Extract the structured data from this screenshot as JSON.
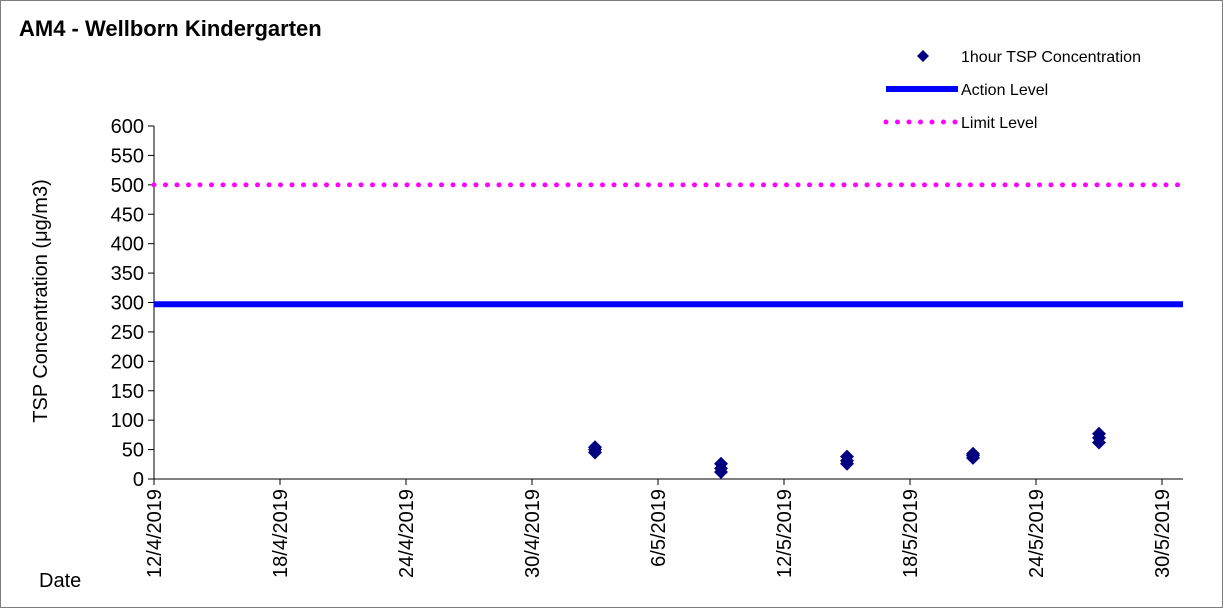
{
  "chart_data": {
    "type": "scatter",
    "title": "AM4 - Wellborn Kindergarten",
    "ylabel": "TSP Concentration  (μg/m3)",
    "xlabel": "Date",
    "ylim": [
      0,
      600
    ],
    "yticks": [
      0,
      50,
      100,
      150,
      200,
      250,
      300,
      350,
      400,
      450,
      500,
      550,
      600
    ],
    "xlim": [
      "2019-04-12",
      "2019-05-31"
    ],
    "xticks": [
      {
        "date": "2019-04-12",
        "label": "12/4/2019"
      },
      {
        "date": "2019-04-18",
        "label": "18/4/2019"
      },
      {
        "date": "2019-04-24",
        "label": "24/4/2019"
      },
      {
        "date": "2019-04-30",
        "label": "30/4/2019"
      },
      {
        "date": "2019-05-06",
        "label": "6/5/2019"
      },
      {
        "date": "2019-05-12",
        "label": "12/5/2019"
      },
      {
        "date": "2019-05-18",
        "label": "18/5/2019"
      },
      {
        "date": "2019-05-24",
        "label": "24/5/2019"
      },
      {
        "date": "2019-05-30",
        "label": "30/5/2019"
      }
    ],
    "grid": false,
    "legend_position": "top-right",
    "series": [
      {
        "name": "1hour TSP Concentration",
        "kind": "scatter",
        "color": "#000080",
        "points": [
          {
            "x": "2019-05-03",
            "y": 45
          },
          {
            "x": "2019-05-03",
            "y": 50
          },
          {
            "x": "2019-05-03",
            "y": 54
          },
          {
            "x": "2019-05-09",
            "y": 12
          },
          {
            "x": "2019-05-09",
            "y": 18
          },
          {
            "x": "2019-05-09",
            "y": 26
          },
          {
            "x": "2019-05-15",
            "y": 26
          },
          {
            "x": "2019-05-15",
            "y": 31
          },
          {
            "x": "2019-05-15",
            "y": 38
          },
          {
            "x": "2019-05-21",
            "y": 36
          },
          {
            "x": "2019-05-21",
            "y": 40
          },
          {
            "x": "2019-05-21",
            "y": 43
          },
          {
            "x": "2019-05-27",
            "y": 62
          },
          {
            "x": "2019-05-27",
            "y": 70
          },
          {
            "x": "2019-05-27",
            "y": 77
          }
        ]
      },
      {
        "name": "Action Level",
        "kind": "hline",
        "color": "#0000ff",
        "y": 297
      },
      {
        "name": "Limit Level",
        "kind": "hline-dotted",
        "color": "#ff00ff",
        "y": 500
      }
    ]
  }
}
